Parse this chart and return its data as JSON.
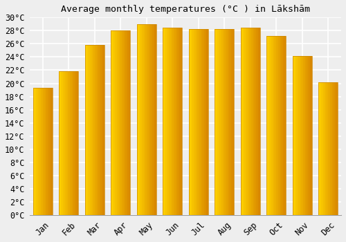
{
  "title": "Average monthly temperatures (°C ) in Lākshām",
  "months": [
    "Jan",
    "Feb",
    "Mar",
    "Apr",
    "May",
    "Jun",
    "Jul",
    "Aug",
    "Sep",
    "Oct",
    "Nov",
    "Dec"
  ],
  "temperatures": [
    19.3,
    21.8,
    25.8,
    28.0,
    29.0,
    28.5,
    28.2,
    28.2,
    28.5,
    27.2,
    24.2,
    20.2
  ],
  "bar_color_light": "#FFD966",
  "bar_color_mid": "#FFA500",
  "bar_color_dark": "#E07800",
  "ylim": [
    0,
    30
  ],
  "ytick_step": 2,
  "background_color": "#eeeeee",
  "grid_color": "#ffffff",
  "title_fontsize": 9.5,
  "tick_fontsize": 8.5
}
